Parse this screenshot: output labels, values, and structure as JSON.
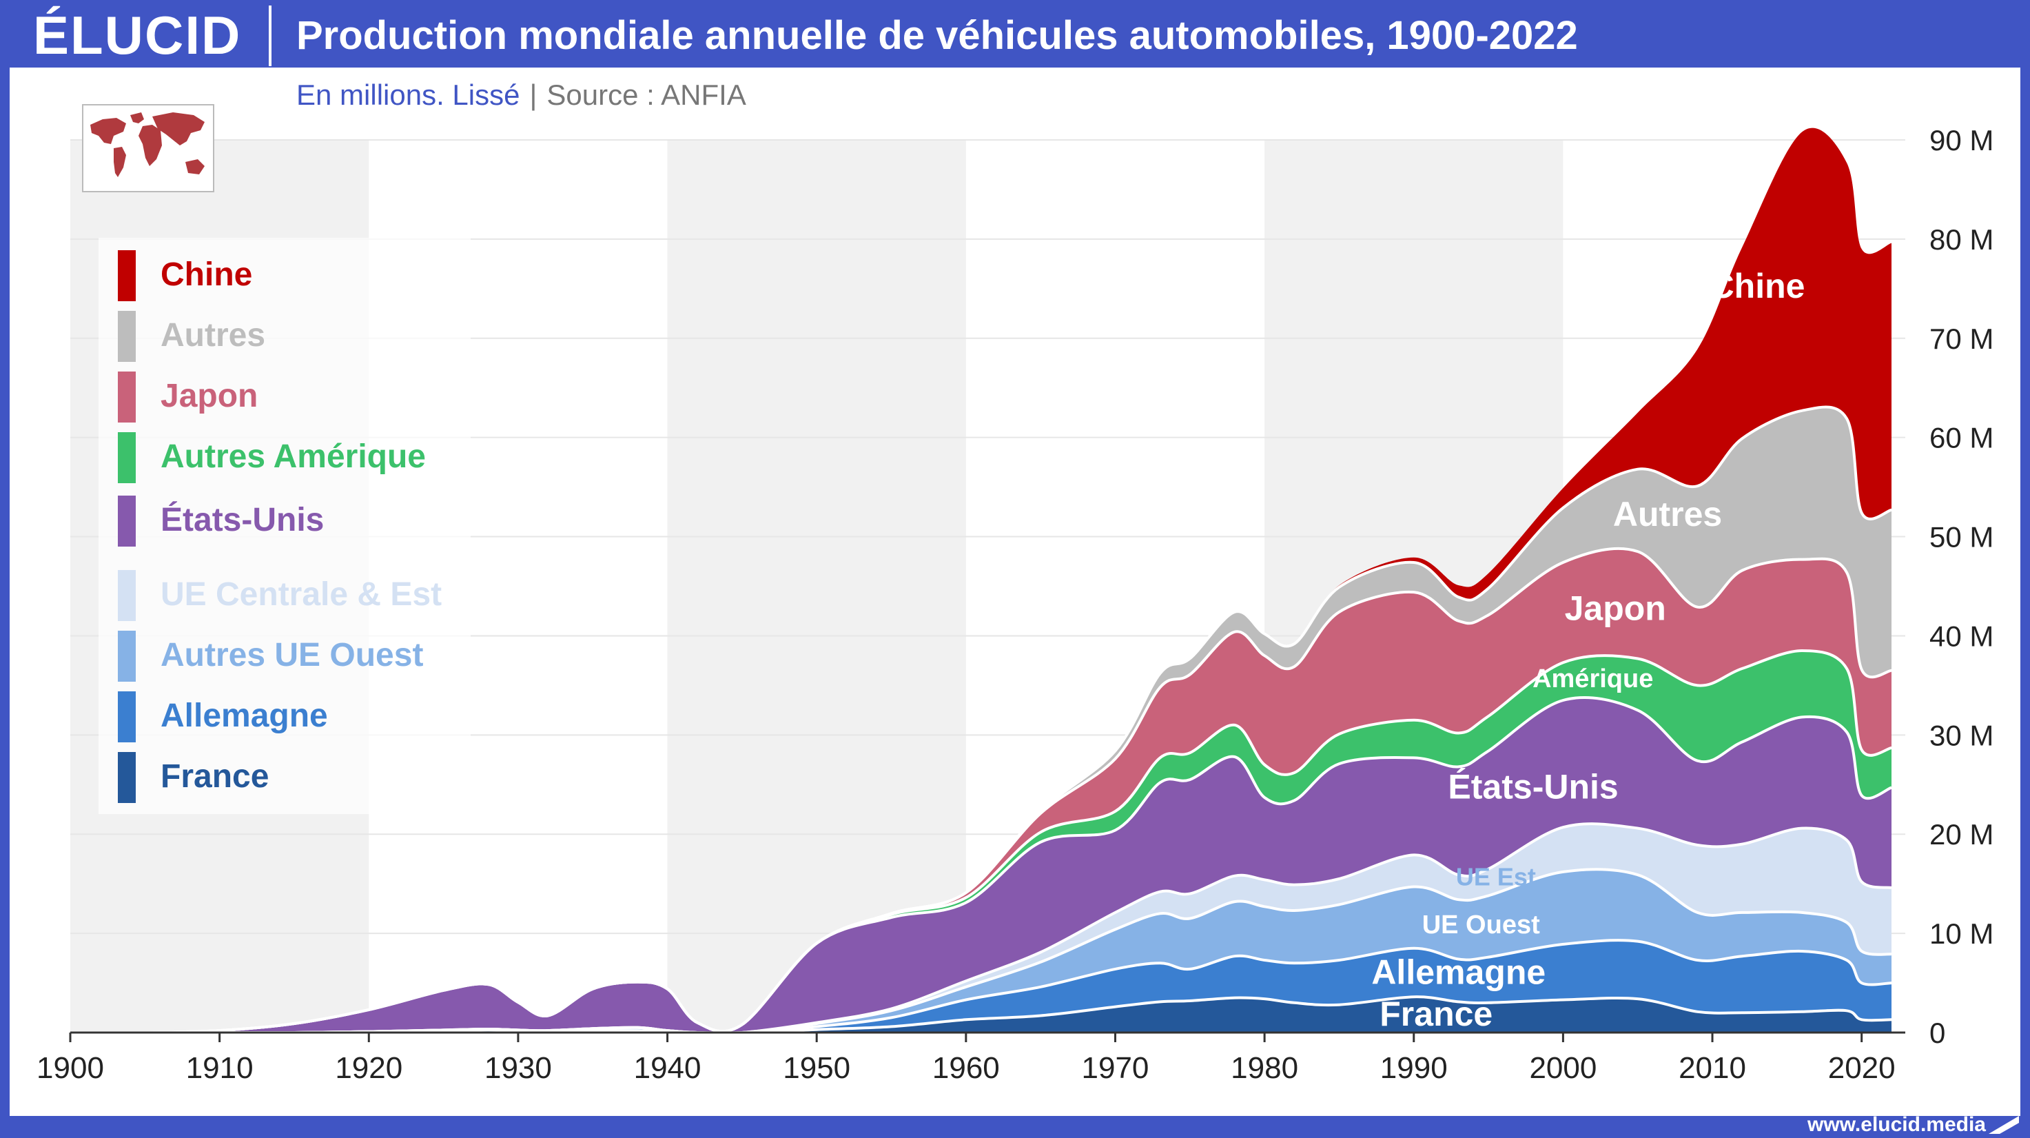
{
  "header": {
    "logo": "ÉLUCID",
    "title": "Production mondiale annuelle de véhicules automobiles, 1900-2022",
    "subtitle_main": "En millions. Lissé",
    "subtitle_sep": "|",
    "subtitle_source": "Source : ANFIA"
  },
  "footer": {
    "url": "www.elucid.media"
  },
  "colors": {
    "frame": "#4055c4",
    "France": "#24589a",
    "Allemagne": "#3b7fd0",
    "Autres UE Ouest": "#86b2e6",
    "UE Centrale & Est": "#d4e1f3",
    "États-Unis": "#8659ad",
    "Autres Amérique": "#3cc16b",
    "Japon": "#c9627a",
    "Autres": "#bdbdbd",
    "Chine": "#c00000"
  },
  "legend": [
    {
      "label": "Chine",
      "color": "#c00000"
    },
    {
      "label": "Autres",
      "color": "#bdbdbd"
    },
    {
      "label": "Japon",
      "color": "#c9627a"
    },
    {
      "label": "Autres Amérique",
      "color": "#3cc16b"
    },
    {
      "label": "États-Unis",
      "color": "#8659ad"
    },
    {
      "label": "UE Centrale & Est",
      "color": "#d4e1f3"
    },
    {
      "label": "Autres UE Ouest",
      "color": "#86b2e6"
    },
    {
      "label": "Allemagne",
      "color": "#3b7fd0"
    },
    {
      "label": "France",
      "color": "#24589a"
    }
  ],
  "chart_data": {
    "type": "area",
    "stacked": true,
    "smoothed": true,
    "title": "Production mondiale annuelle de véhicules automobiles, 1900-2022",
    "unit": "En millions",
    "x": [
      1900,
      1905,
      1910,
      1915,
      1920,
      1925,
      1928,
      1930,
      1932,
      1935,
      1938,
      1940,
      1942,
      1945,
      1950,
      1955,
      1960,
      1965,
      1970,
      1973,
      1975,
      1978,
      1980,
      1982,
      1985,
      1990,
      1993,
      1995,
      2000,
      2005,
      2009,
      2012,
      2016,
      2019,
      2020,
      2022
    ],
    "series": [
      {
        "name": "France",
        "values": [
          0,
          0,
          0,
          0,
          0.1,
          0.2,
          0.25,
          0.2,
          0.15,
          0.2,
          0.2,
          0.1,
          0,
          0,
          0.3,
          0.6,
          1.3,
          1.7,
          2.6,
          3.1,
          3.2,
          3.5,
          3.4,
          3.0,
          2.8,
          3.6,
          3.1,
          3.0,
          3.3,
          3.4,
          2.1,
          2.0,
          2.1,
          2.2,
          1.3,
          1.3
        ]
      },
      {
        "name": "Allemagne",
        "values": [
          0,
          0,
          0,
          0,
          0,
          0.05,
          0.1,
          0.05,
          0.05,
          0.2,
          0.3,
          0.1,
          0,
          0,
          0.3,
          0.9,
          2.0,
          2.9,
          3.8,
          3.9,
          3.2,
          4.2,
          3.9,
          4.0,
          4.5,
          4.9,
          4.3,
          4.6,
          5.6,
          5.8,
          5.2,
          5.7,
          6.1,
          5.1,
          3.7,
          3.7
        ]
      },
      {
        "name": "Autres UE Ouest",
        "values": [
          0,
          0,
          0,
          0,
          0,
          0,
          0,
          0,
          0,
          0,
          0,
          0,
          0,
          0,
          0.3,
          0.7,
          1.3,
          2.5,
          4.0,
          5.0,
          5.1,
          5.5,
          5.4,
          5.3,
          5.6,
          6.2,
          6.0,
          6.2,
          7.3,
          6.7,
          4.8,
          4.4,
          3.9,
          3.8,
          3.2,
          2.9
        ]
      },
      {
        "name": "UE Centrale & Est",
        "values": [
          0,
          0,
          0,
          0,
          0,
          0,
          0,
          0,
          0,
          0,
          0,
          0,
          0,
          0,
          0.1,
          0.2,
          0.6,
          1.0,
          1.7,
          2.2,
          2.5,
          2.6,
          2.7,
          2.6,
          2.6,
          3.2,
          2.5,
          2.7,
          4.5,
          4.7,
          6.8,
          6.9,
          8.5,
          8.3,
          7.0,
          6.7
        ]
      },
      {
        "name": "États-Unis",
        "values": [
          0,
          0,
          0.2,
          0.9,
          2.2,
          4.0,
          4.5,
          2.8,
          1.5,
          4.0,
          4.6,
          4.2,
          1.0,
          0.8,
          8.0,
          9.2,
          7.9,
          11.1,
          8.3,
          11.0,
          11.5,
          12.0,
          8.3,
          8.5,
          11.6,
          9.8,
          10.9,
          11.9,
          12.8,
          11.9,
          8.5,
          10.3,
          11.2,
          10.9,
          8.7,
          10.1
        ]
      },
      {
        "name": "Autres Amérique",
        "values": [
          0,
          0,
          0,
          0,
          0,
          0,
          0,
          0,
          0,
          0,
          0,
          0,
          0,
          0,
          0,
          0.3,
          0.5,
          1.0,
          1.9,
          2.5,
          2.7,
          3.2,
          3.3,
          2.8,
          3.0,
          3.8,
          3.4,
          3.5,
          3.8,
          5.2,
          7.6,
          7.4,
          6.7,
          6.4,
          4.6,
          4.0
        ]
      },
      {
        "name": "Japon",
        "values": [
          0,
          0,
          0,
          0,
          0,
          0,
          0,
          0,
          0,
          0,
          0,
          0,
          0,
          0,
          0,
          0.1,
          0.5,
          1.9,
          5.3,
          7.1,
          7.9,
          9.4,
          11.0,
          10.7,
          12.3,
          12.9,
          11.3,
          10.2,
          10.1,
          10.8,
          7.9,
          9.9,
          9.2,
          9.7,
          8.1,
          7.8
        ]
      },
      {
        "name": "Autres",
        "values": [
          0,
          0,
          0,
          0,
          0,
          0,
          0,
          0,
          0,
          0,
          0,
          0,
          0,
          0,
          0,
          0,
          0,
          0.2,
          0.8,
          1.4,
          1.6,
          2.0,
          2.2,
          2.3,
          2.5,
          3.0,
          2.4,
          2.7,
          5.5,
          8.3,
          12.2,
          13.3,
          15.0,
          15.5,
          15.8,
          16.2
        ]
      },
      {
        "name": "Chine",
        "values": [
          0,
          0,
          0,
          0,
          0,
          0,
          0,
          0,
          0,
          0,
          0,
          0,
          0,
          0,
          0,
          0,
          0,
          0,
          0,
          0,
          0,
          0,
          0,
          0,
          0.2,
          0.5,
          1.2,
          1.5,
          2.0,
          5.7,
          13.8,
          19.3,
          28.1,
          25.8,
          26.6,
          26.9
        ]
      }
    ],
    "xlim": [
      1900,
      2022
    ],
    "ylim": [
      0,
      90
    ],
    "x_ticks": [
      "1900",
      "1910",
      "1920",
      "1930",
      "1940",
      "1950",
      "1960",
      "1970",
      "1980",
      "1990",
      "2000",
      "2010",
      "2020"
    ],
    "y_ticks": [
      "0",
      "10 M",
      "20 M",
      "30 M",
      "40 M",
      "50 M",
      "60 M",
      "70 M",
      "80 M",
      "90 M"
    ],
    "area_labels": [
      {
        "text": "Chine",
        "series": "Chine",
        "x": 2013,
        "y": 75
      },
      {
        "text": "Autres",
        "series": "Autres",
        "x": 2007,
        "y": 52
      },
      {
        "text": "Japon",
        "series": "Japon",
        "x": 2003.5,
        "y": 42.5
      },
      {
        "text": "Amérique",
        "series": "Autres Amérique",
        "x": 2002,
        "y": 35.5
      },
      {
        "text": "États-Unis",
        "series": "États-Unis",
        "x": 1998,
        "y": 24.5
      },
      {
        "text": "UE Est",
        "series": "UE Centrale & Est",
        "x": 1995.5,
        "y": 15.5
      },
      {
        "text": "UE Ouest",
        "series": "Autres UE Ouest",
        "x": 1994.5,
        "y": 10.7
      },
      {
        "text": "Allemagne",
        "series": "Allemagne",
        "x": 1993,
        "y": 5.8
      },
      {
        "text": "France",
        "series": "France",
        "x": 1991.5,
        "y": 1.6
      }
    ],
    "grid": true,
    "legend_position": "left"
  }
}
